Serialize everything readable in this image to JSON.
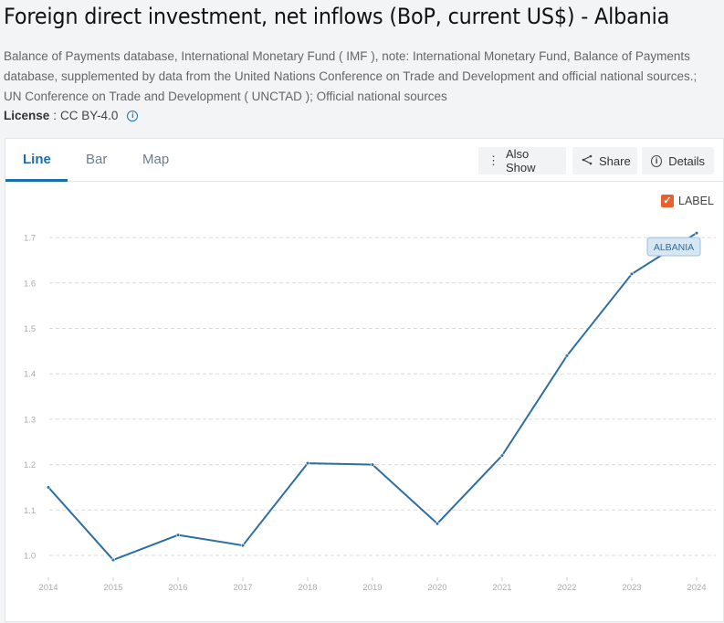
{
  "header": {
    "title": "Foreign direct investment, net inflows (BoP, current US$) - Albania",
    "source_line1": "Balance of Payments database, International Monetary Fund ( IMF ), note: International Monetary Fund, Balance of Payments",
    "source_line2": "database, supplemented by data from the United Nations Conference on Trade and Development and official national sources.;",
    "source_line3": "UN Conference on Trade and Development ( UNCTAD ); Official national sources",
    "license_label": "License",
    "license_sep": " : ",
    "license_value": "CC BY-4.0",
    "license_icon": "info-icon"
  },
  "tabs": [
    {
      "label": "Line",
      "active": true
    },
    {
      "label": "Bar",
      "active": false
    },
    {
      "label": "Map",
      "active": false
    }
  ],
  "toolbar": {
    "also_show": {
      "label": "Also Show",
      "icon": "more-vertical-icon"
    },
    "share": {
      "label": "Share",
      "icon": "share-icon"
    },
    "details": {
      "label": "Details",
      "icon": "info-icon"
    }
  },
  "label_toggle": {
    "label": "LABEL",
    "checked": true
  },
  "colors": {
    "line": "#2b6fa3",
    "accent": "#1a6fa8",
    "checkbox": "#e8602c",
    "series_label_bg": "#d6e6f3"
  },
  "chart_data": {
    "type": "line",
    "title": "Foreign direct investment, net inflows (BoP, current US$) - Albania",
    "xlabel": "",
    "ylabel": "",
    "x": [
      "2014",
      "2015",
      "2016",
      "2017",
      "2018",
      "2019",
      "2020",
      "2021",
      "2022",
      "2023",
      "2024"
    ],
    "series": [
      {
        "name": "ALBANIA",
        "values": [
          1.15,
          0.99,
          1.045,
          1.022,
          1.203,
          1.2,
          1.07,
          1.22,
          1.44,
          1.62,
          1.71
        ]
      }
    ],
    "yticks": [
      "1.0",
      "1.1",
      "1.2",
      "1.3",
      "1.4",
      "1.5",
      "1.6",
      "1.7"
    ],
    "ylim": [
      0.97,
      1.72
    ],
    "grid": true,
    "series_label": "ALBANIA",
    "legend_position": "inline label at end of line"
  }
}
